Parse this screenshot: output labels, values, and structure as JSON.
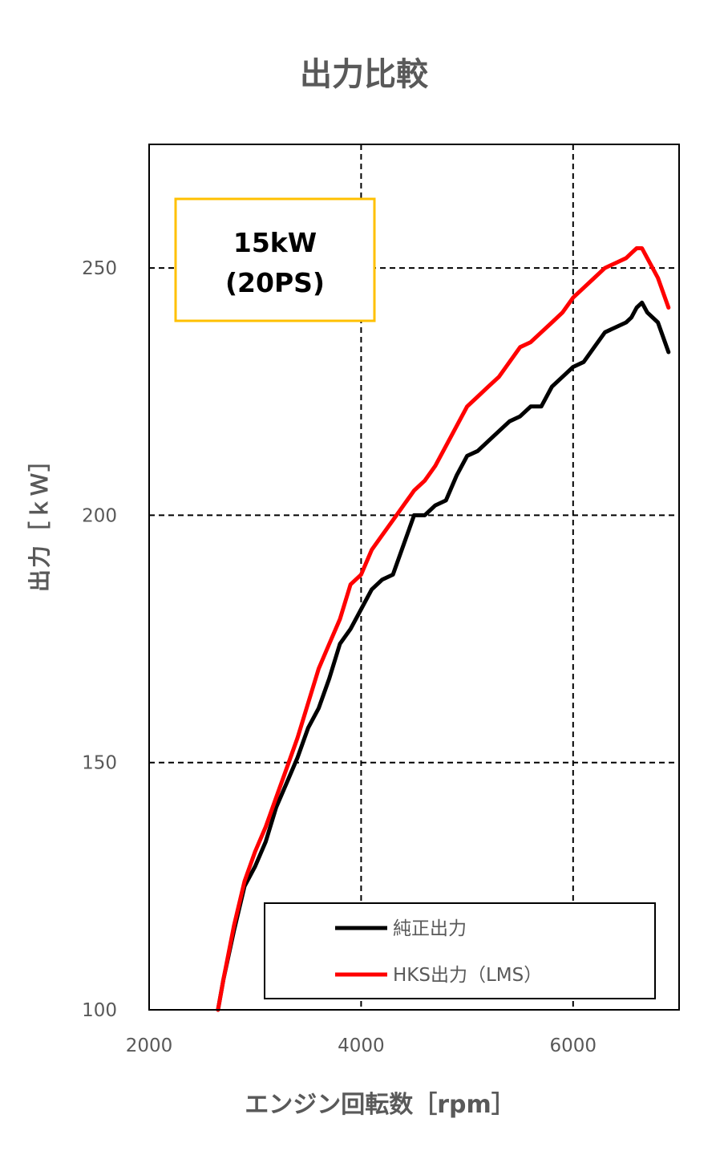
{
  "chart_data": {
    "type": "line",
    "title": "出力比較",
    "xlabel": "エンジン回転数［rpm］",
    "ylabel": "出力［ｋＷ］",
    "xlim": [
      2000,
      7000
    ],
    "ylim": [
      100,
      275
    ],
    "xticks": [
      2000,
      4000,
      6000
    ],
    "yticks": [
      100,
      150,
      200,
      250
    ],
    "grid": true,
    "legend_position": "bottom-right",
    "annotation": [
      "15kW",
      "(20PS)"
    ],
    "series": [
      {
        "name": "純正出力",
        "color": "#000000",
        "x": [
          2650,
          2700,
          2800,
          2900,
          3000,
          3100,
          3200,
          3300,
          3400,
          3500,
          3600,
          3700,
          3800,
          3900,
          4000,
          4100,
          4200,
          4300,
          4400,
          4500,
          4600,
          4700,
          4800,
          4900,
          5000,
          5100,
          5200,
          5300,
          5400,
          5500,
          5600,
          5700,
          5800,
          5900,
          6000,
          6100,
          6200,
          6300,
          6400,
          6500,
          6550,
          6600,
          6650,
          6700,
          6800,
          6900
        ],
        "y": [
          100,
          106,
          116,
          125,
          129,
          134,
          141,
          146,
          151,
          157,
          161,
          167,
          174,
          177,
          181,
          185,
          187,
          188,
          194,
          200,
          200,
          202,
          203,
          208,
          212,
          213,
          215,
          217,
          219,
          220,
          222,
          222,
          226,
          228,
          230,
          231,
          234,
          237,
          238,
          239,
          240,
          242,
          243,
          241,
          239,
          233
        ]
      },
      {
        "name": "HKS出力（LMS）",
        "color": "#ff0000",
        "x": [
          2650,
          2700,
          2800,
          2900,
          3000,
          3100,
          3200,
          3300,
          3400,
          3500,
          3600,
          3700,
          3800,
          3900,
          4000,
          4100,
          4200,
          4300,
          4400,
          4500,
          4600,
          4700,
          4800,
          4900,
          5000,
          5100,
          5200,
          5300,
          5400,
          5500,
          5600,
          5700,
          5800,
          5900,
          6000,
          6100,
          6200,
          6300,
          6400,
          6500,
          6550,
          6600,
          6650,
          6700,
          6800,
          6900
        ],
        "y": [
          100,
          106,
          117,
          126,
          132,
          137,
          143,
          149,
          155,
          162,
          169,
          174,
          179,
          186,
          188,
          193,
          196,
          199,
          202,
          205,
          207,
          210,
          214,
          218,
          222,
          224,
          226,
          228,
          231,
          234,
          235,
          237,
          239,
          241,
          244,
          246,
          248,
          250,
          251,
          252,
          253,
          254,
          254,
          252,
          248,
          242
        ]
      }
    ]
  }
}
